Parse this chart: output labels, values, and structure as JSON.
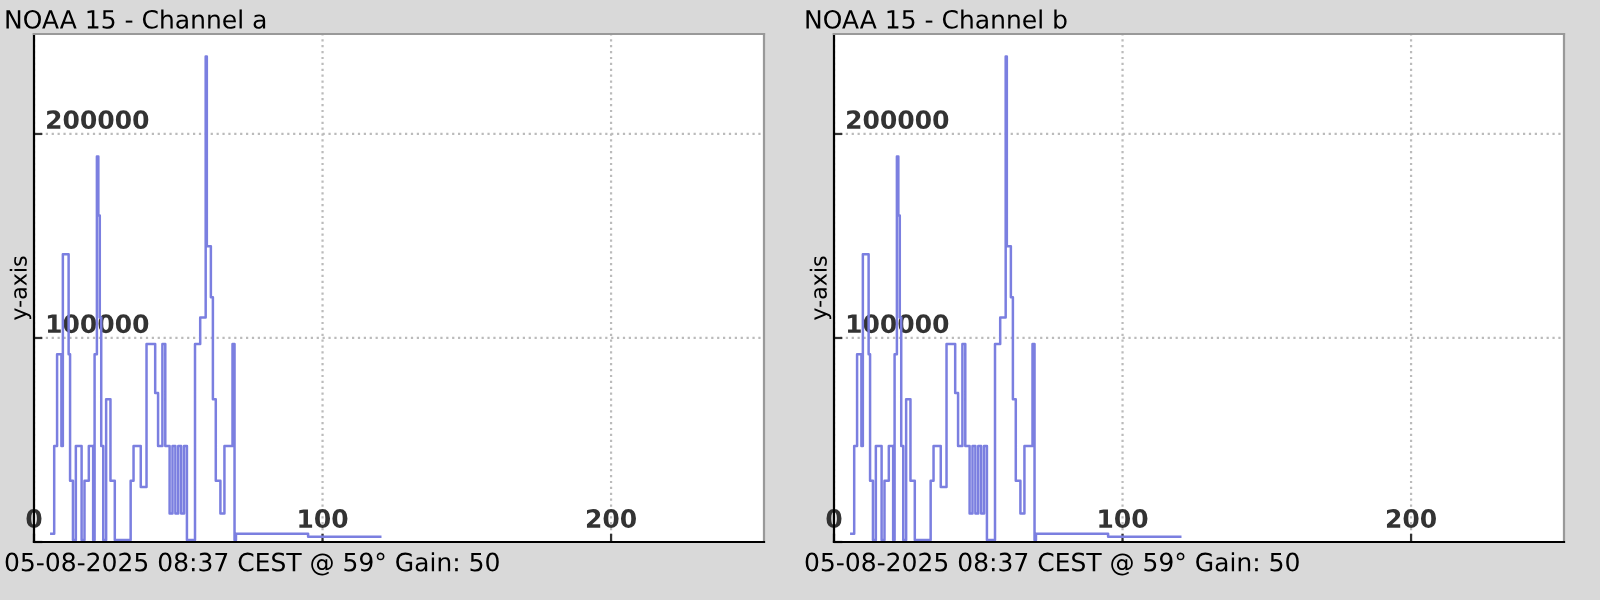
{
  "chart_data": [
    {
      "type": "step",
      "title": "NOAA 15 - Channel a",
      "ylabel": "y-axis",
      "x": [
        6,
        7,
        8,
        9.5,
        10,
        12,
        12.5,
        13.5,
        14.5,
        16.5,
        17.5,
        19,
        20.5,
        21,
        21.8,
        22.3,
        22.8,
        23.3,
        24,
        25,
        26.5,
        28,
        33.5,
        34.5,
        37,
        39,
        42,
        43,
        44.5,
        45.5,
        47,
        48,
        49,
        50,
        51,
        52,
        53,
        55.8,
        57.6,
        59.5,
        59.9,
        61.3,
        62,
        63,
        64.6,
        66,
        68.8,
        69.5,
        70,
        95,
        120
      ],
      "series": [
        {
          "color": "#7b7fe0",
          "values": [
            4000,
            47000,
            92000,
            47000,
            141000,
            92000,
            30000,
            1000,
            47000,
            1000,
            30000,
            47000,
            1000,
            92000,
            189000,
            160000,
            110000,
            47000,
            1000,
            70000,
            30000,
            1000,
            30000,
            47000,
            27000,
            97000,
            73000,
            47000,
            97000,
            47000,
            14000,
            47000,
            14000,
            47000,
            14000,
            47000,
            1000,
            97000,
            110000,
            238000,
            145000,
            120000,
            70000,
            30000,
            14000,
            47000,
            97000,
            1000,
            4000,
            2600,
            2600
          ]
        }
      ],
      "xlim": [
        0,
        253
      ],
      "ylim": [
        0,
        249000
      ],
      "xticks": [
        0,
        100,
        200
      ],
      "yticks": [
        {
          "value": 0,
          "label": null
        },
        100000,
        200000
      ],
      "grid": true,
      "annotations": [
        "05-08-2025 08:37 CEST @ 59° Gain: 50"
      ]
    },
    {
      "type": "step",
      "title": "NOAA 15 - Channel b",
      "ylabel": "y-axis",
      "x": [
        6,
        7,
        8,
        9.5,
        10,
        12,
        12.5,
        13.5,
        14.5,
        16.5,
        17.5,
        19,
        20.5,
        21,
        21.8,
        22.3,
        22.8,
        23.3,
        24,
        25,
        26.5,
        28,
        33.5,
        34.5,
        37,
        39,
        42,
        43,
        44.5,
        45.5,
        47,
        48,
        49,
        50,
        51,
        52,
        53,
        55.8,
        57.6,
        59.5,
        59.9,
        61.3,
        62,
        63,
        64.6,
        66,
        68.8,
        69.5,
        70,
        95,
        120
      ],
      "series": [
        {
          "color": "#7b7fe0",
          "values": [
            4000,
            47000,
            92000,
            47000,
            141000,
            92000,
            30000,
            1000,
            47000,
            1000,
            30000,
            47000,
            1000,
            92000,
            189000,
            160000,
            110000,
            47000,
            1000,
            70000,
            30000,
            1000,
            30000,
            47000,
            27000,
            97000,
            73000,
            47000,
            97000,
            47000,
            14000,
            47000,
            14000,
            47000,
            14000,
            47000,
            1000,
            97000,
            110000,
            238000,
            145000,
            120000,
            70000,
            30000,
            14000,
            47000,
            97000,
            1000,
            4000,
            2600,
            2600
          ]
        }
      ],
      "xlim": [
        0,
        253
      ],
      "ylim": [
        0,
        249000
      ],
      "xticks": [
        0,
        100,
        200
      ],
      "yticks": [
        {
          "value": 0,
          "label": null
        },
        100000,
        200000
      ],
      "grid": true,
      "annotations": [
        "05-08-2025 08:37 CEST @ 59° Gain: 50"
      ]
    }
  ]
}
